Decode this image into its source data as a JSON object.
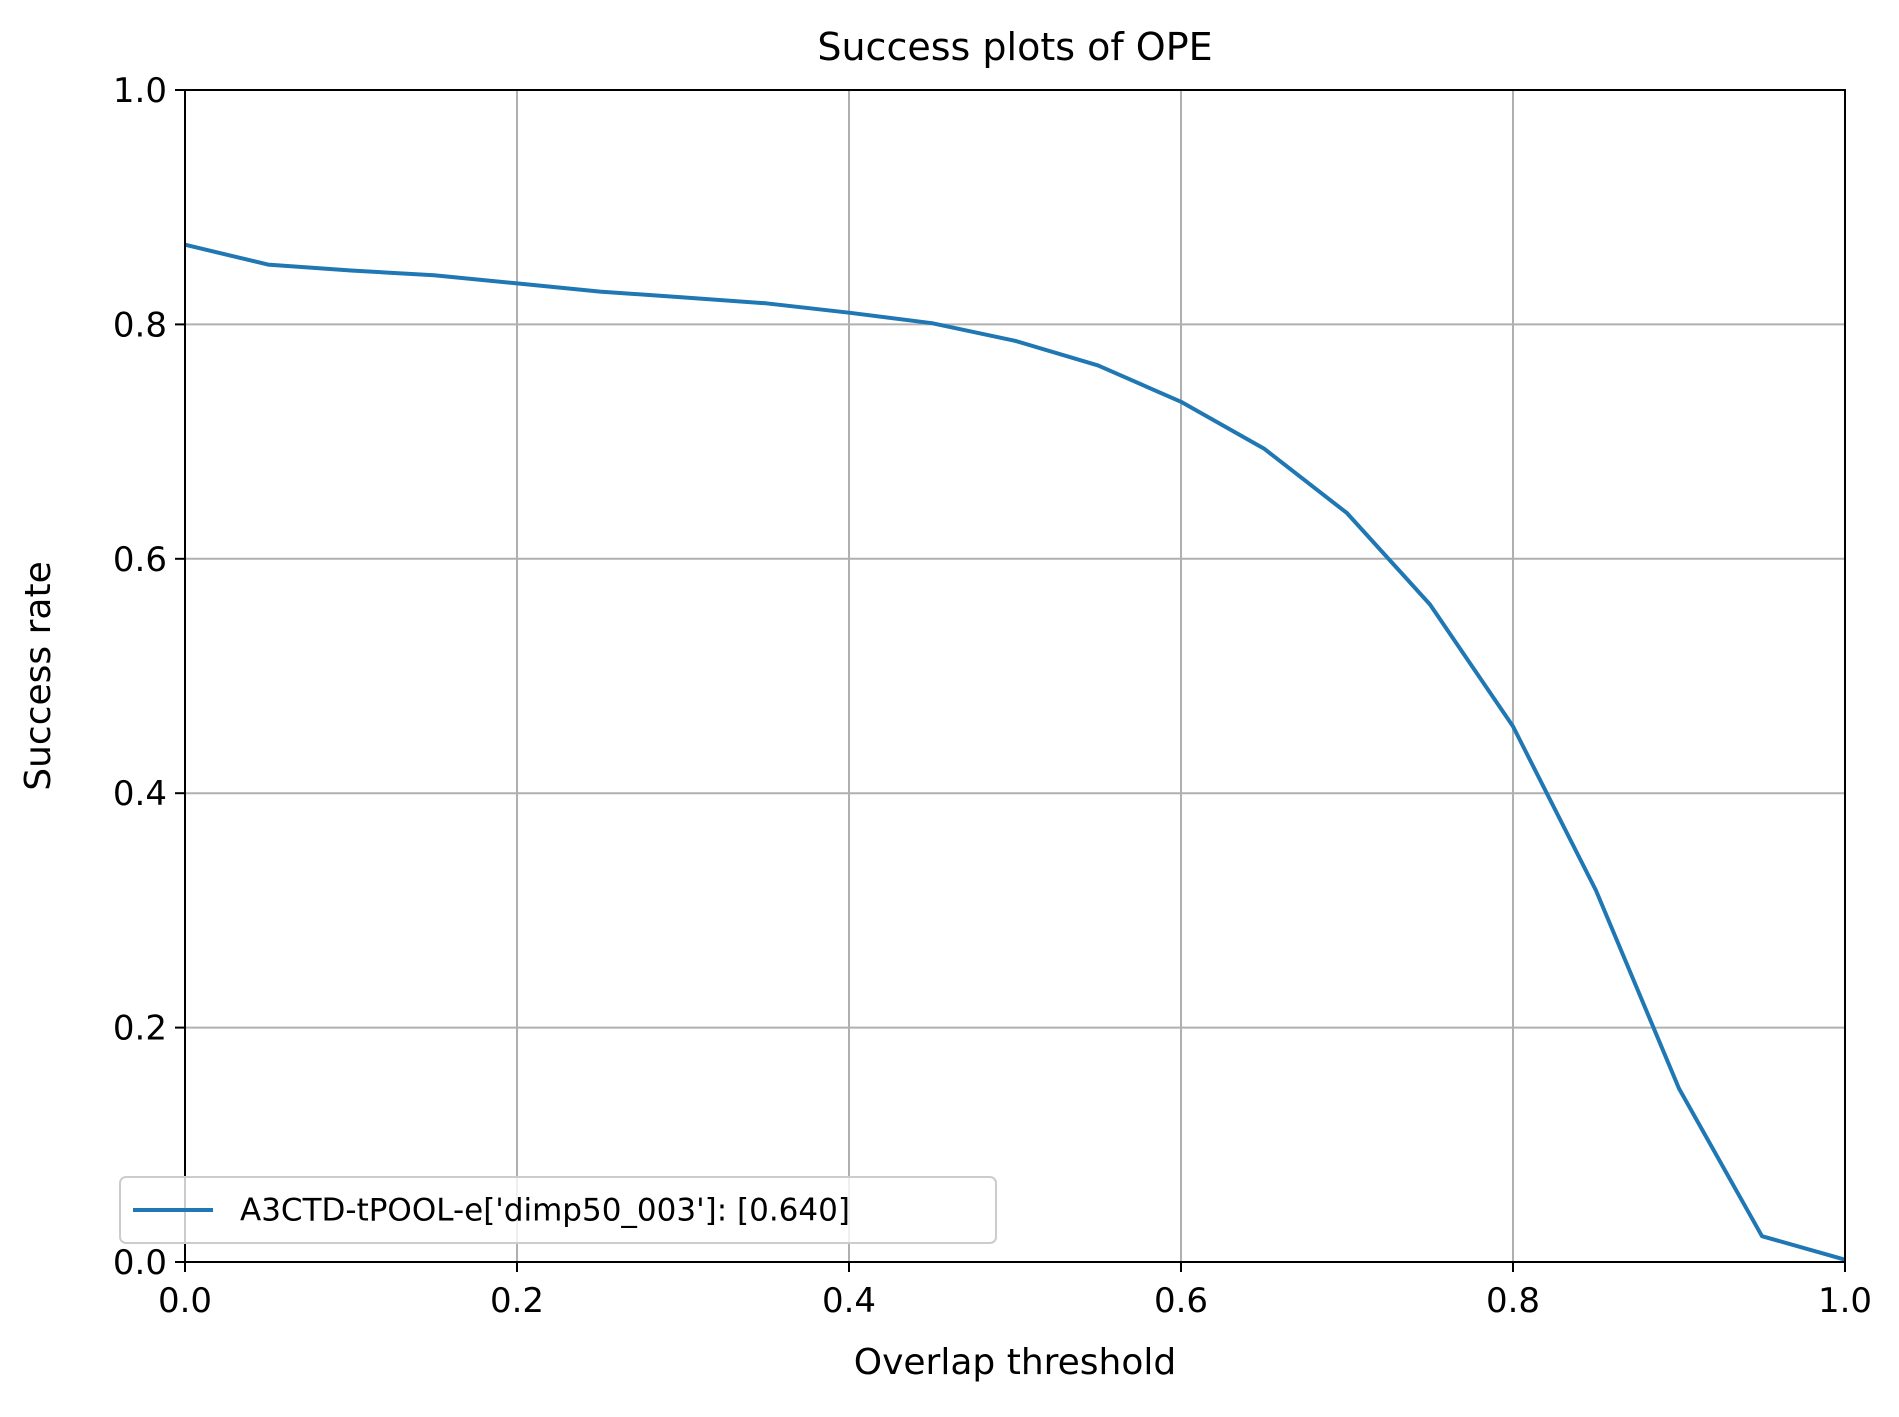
{
  "chart_data": {
    "type": "line",
    "title": "Success plots of OPE",
    "xlabel": "Overlap threshold",
    "ylabel": "Success rate",
    "xlim": [
      0.0,
      1.0
    ],
    "ylim": [
      0.0,
      1.0
    ],
    "xticks": [
      "0.0",
      "0.2",
      "0.4",
      "0.6",
      "0.8",
      "1.0"
    ],
    "yticks": [
      "0.0",
      "0.2",
      "0.4",
      "0.6",
      "0.8",
      "1.0"
    ],
    "grid": true,
    "legend_position": "lower-left",
    "series": [
      {
        "name": "A3CTD-tPOOL-e['dimp50_003']: [0.640]",
        "color": "#1f77b4",
        "x": [
          0.0,
          0.05,
          0.1,
          0.15,
          0.2,
          0.25,
          0.3,
          0.35,
          0.4,
          0.45,
          0.5,
          0.55,
          0.6,
          0.65,
          0.7,
          0.75,
          0.8,
          0.85,
          0.9,
          0.95,
          1.0
        ],
        "y": [
          0.868,
          0.851,
          0.846,
          0.842,
          0.835,
          0.828,
          0.823,
          0.818,
          0.81,
          0.801,
          0.786,
          0.765,
          0.734,
          0.694,
          0.639,
          0.561,
          0.457,
          0.317,
          0.148,
          0.022,
          0.002
        ]
      }
    ]
  }
}
